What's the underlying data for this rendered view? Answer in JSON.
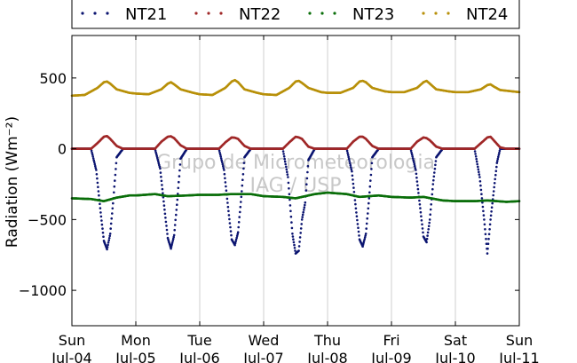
{
  "chart_data": {
    "type": "scatter",
    "title": "",
    "xlabel": "",
    "ylabel": "Radiation (Wm⁻²)",
    "ylim": [
      -1250,
      800
    ],
    "xlim": [
      0,
      7
    ],
    "grid": "vertical",
    "legend_position": "top",
    "watermark": "Grupo de Micrometeorologia\nIAG / USP",
    "yticks": [
      500,
      0,
      -500,
      -1000
    ],
    "ytick_labels": [
      "500",
      "0",
      "−500",
      "−1000"
    ],
    "xtick_labels": [
      {
        "day": "Sun",
        "date": "Jul-04"
      },
      {
        "day": "Mon",
        "date": "Jul-05"
      },
      {
        "day": "Tue",
        "date": "Jul-06"
      },
      {
        "day": "Wed",
        "date": "Jul-07"
      },
      {
        "day": "Thu",
        "date": "Jul-08"
      },
      {
        "day": "Fri",
        "date": "Jul-09"
      },
      {
        "day": "Sat",
        "date": "Jul-10"
      },
      {
        "day": "Sun",
        "date": "Jul-11"
      }
    ],
    "series": [
      {
        "name": "NT21",
        "color": "#0b1470",
        "x": [
          0.0,
          0.3,
          0.38,
          0.45,
          0.5,
          0.55,
          0.6,
          0.65,
          0.7,
          0.8,
          1.0,
          1.3,
          1.38,
          1.45,
          1.5,
          1.55,
          1.6,
          1.65,
          1.7,
          1.8,
          2.0,
          2.3,
          2.38,
          2.45,
          2.5,
          2.55,
          2.6,
          2.65,
          2.7,
          2.8,
          3.0,
          3.3,
          3.38,
          3.45,
          3.5,
          3.55,
          3.6,
          3.65,
          3.7,
          3.8,
          4.0,
          4.3,
          4.38,
          4.45,
          4.5,
          4.55,
          4.6,
          4.65,
          4.7,
          4.8,
          5.0,
          5.3,
          5.38,
          5.45,
          5.5,
          5.55,
          5.6,
          5.65,
          5.7,
          5.8,
          6.0,
          6.3,
          6.38,
          6.45,
          6.5,
          6.55,
          6.6,
          6.65,
          6.7,
          6.8,
          7.0
        ],
        "y": [
          0,
          0,
          -150,
          -450,
          -650,
          -710,
          -600,
          -350,
          -60,
          0,
          0,
          0,
          -140,
          -430,
          -630,
          -705,
          -610,
          -360,
          -70,
          0,
          0,
          0,
          -150,
          -440,
          -640,
          -680,
          -590,
          -340,
          -60,
          0,
          0,
          0,
          -200,
          -600,
          -740,
          -720,
          -500,
          -380,
          -80,
          0,
          0,
          0,
          -160,
          -450,
          -640,
          -690,
          -600,
          -350,
          -60,
          0,
          0,
          0,
          -150,
          -420,
          -620,
          -660,
          -500,
          -250,
          -60,
          0,
          0,
          0,
          -200,
          -500,
          -740,
          -500,
          -300,
          -100,
          0,
          0,
          0
        ]
      },
      {
        "name": "NT22",
        "color": "#a02828",
        "x": [
          0.0,
          0.3,
          0.4,
          0.5,
          0.55,
          0.6,
          0.7,
          0.8,
          1.0,
          1.3,
          1.4,
          1.5,
          1.55,
          1.6,
          1.7,
          1.8,
          2.0,
          2.3,
          2.4,
          2.5,
          2.55,
          2.6,
          2.7,
          2.8,
          3.0,
          3.3,
          3.4,
          3.5,
          3.55,
          3.6,
          3.7,
          3.8,
          4.0,
          4.3,
          4.4,
          4.5,
          4.55,
          4.6,
          4.7,
          4.8,
          5.0,
          5.3,
          5.4,
          5.5,
          5.55,
          5.6,
          5.7,
          5.8,
          6.0,
          6.3,
          6.4,
          6.5,
          6.55,
          6.6,
          6.7,
          6.8,
          7.0
        ],
        "y": [
          0,
          0,
          40,
          85,
          90,
          70,
          20,
          0,
          0,
          0,
          50,
          85,
          88,
          75,
          25,
          0,
          0,
          0,
          45,
          80,
          78,
          70,
          20,
          0,
          0,
          0,
          45,
          85,
          80,
          70,
          15,
          0,
          0,
          0,
          50,
          85,
          85,
          70,
          20,
          0,
          0,
          0,
          50,
          80,
          75,
          60,
          15,
          0,
          0,
          0,
          40,
          80,
          85,
          60,
          10,
          0,
          0
        ]
      },
      {
        "name": "NT23",
        "color": "#0a6e0a",
        "x": [
          0.0,
          0.3,
          0.5,
          0.7,
          0.9,
          1.0,
          1.3,
          1.5,
          1.8,
          2.0,
          2.3,
          2.5,
          2.8,
          3.0,
          3.3,
          3.5,
          3.8,
          4.0,
          4.3,
          4.5,
          4.8,
          5.0,
          5.3,
          5.5,
          5.8,
          6.0,
          6.3,
          6.5,
          6.8,
          7.0
        ],
        "y": [
          -350,
          -355,
          -370,
          -345,
          -330,
          -330,
          -320,
          -335,
          -330,
          -325,
          -325,
          -320,
          -320,
          -335,
          -340,
          -350,
          -320,
          -310,
          -320,
          -340,
          -330,
          -340,
          -345,
          -340,
          -365,
          -370,
          -370,
          -365,
          -375,
          -370
        ]
      },
      {
        "name": "NT24",
        "color": "#b8900a",
        "x": [
          0.0,
          0.2,
          0.4,
          0.5,
          0.55,
          0.6,
          0.7,
          0.9,
          1.0,
          1.2,
          1.4,
          1.5,
          1.55,
          1.6,
          1.7,
          1.9,
          2.0,
          2.2,
          2.4,
          2.5,
          2.55,
          2.6,
          2.7,
          2.9,
          3.0,
          3.2,
          3.4,
          3.5,
          3.55,
          3.6,
          3.7,
          3.9,
          4.0,
          4.2,
          4.4,
          4.5,
          4.55,
          4.6,
          4.7,
          4.9,
          5.0,
          5.2,
          5.4,
          5.5,
          5.55,
          5.6,
          5.7,
          5.9,
          6.0,
          6.2,
          6.4,
          6.5,
          6.55,
          6.6,
          6.7,
          6.9,
          7.0
        ],
        "y": [
          375,
          380,
          430,
          470,
          475,
          460,
          420,
          395,
          390,
          385,
          420,
          460,
          470,
          455,
          420,
          395,
          385,
          380,
          430,
          475,
          485,
          470,
          420,
          395,
          385,
          380,
          430,
          475,
          480,
          465,
          430,
          400,
          395,
          395,
          430,
          475,
          480,
          470,
          430,
          405,
          400,
          400,
          430,
          470,
          480,
          460,
          420,
          405,
          400,
          400,
          420,
          450,
          455,
          440,
          415,
          405,
          400
        ]
      }
    ]
  }
}
